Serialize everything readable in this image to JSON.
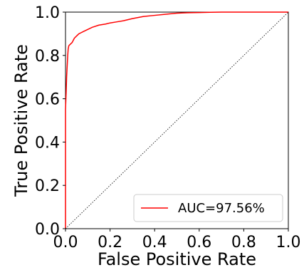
{
  "chart_data": {
    "type": "line",
    "title": "",
    "xlabel": "False Positive Rate",
    "ylabel": "True Positive Rate",
    "xlim": [
      0.0,
      1.0
    ],
    "ylim": [
      0.0,
      1.0
    ],
    "xticks": [
      0.0,
      0.2,
      0.4,
      0.6,
      0.8,
      1.0
    ],
    "yticks": [
      0.0,
      0.2,
      0.4,
      0.6,
      0.8,
      1.0
    ],
    "tick_labels": [
      "0.0",
      "0.2",
      "0.4",
      "0.6",
      "0.8",
      "1.0"
    ],
    "grid": false,
    "legend_position": "bottom-right",
    "series": [
      {
        "name": "AUC=97.56%",
        "color": "#ff0000",
        "style": "solid",
        "x": [
          0.0,
          0.0,
          0.003,
          0.005,
          0.008,
          0.01,
          0.012,
          0.015,
          0.02,
          0.025,
          0.03,
          0.035,
          0.04,
          0.05,
          0.06,
          0.07,
          0.08,
          0.1,
          0.12,
          0.15,
          0.18,
          0.2,
          0.23,
          0.26,
          0.3,
          0.35,
          0.4,
          0.45,
          0.5,
          0.55,
          0.6,
          0.65,
          0.7,
          0.8,
          0.9,
          1.0
        ],
        "y": [
          0.0,
          0.55,
          0.63,
          0.7,
          0.76,
          0.8,
          0.83,
          0.845,
          0.85,
          0.855,
          0.86,
          0.87,
          0.88,
          0.89,
          0.9,
          0.905,
          0.91,
          0.92,
          0.93,
          0.94,
          0.945,
          0.95,
          0.955,
          0.96,
          0.97,
          0.98,
          0.985,
          0.99,
          0.995,
          0.997,
          0.998,
          0.999,
          1.0,
          1.0,
          1.0,
          1.0
        ]
      },
      {
        "name": "",
        "color": "#000000",
        "style": "dotted",
        "x": [
          0.0,
          1.0
        ],
        "y": [
          0.0,
          1.0
        ]
      }
    ]
  }
}
